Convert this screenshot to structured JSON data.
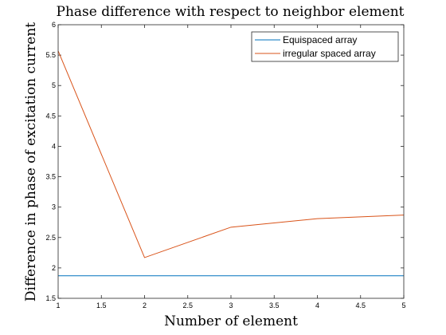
{
  "chart_data": {
    "type": "line",
    "title": "Phase difference with respect to neighbor element",
    "xlabel": "Number of element",
    "ylabel": "Difference in phase of excitation current",
    "xlim": [
      1,
      5
    ],
    "ylim": [
      1.5,
      6
    ],
    "x_ticks": [
      1,
      1.5,
      2,
      2.5,
      3,
      3.5,
      4,
      4.5,
      5
    ],
    "x_tick_labels": [
      "1",
      "1.5",
      "2",
      "2.5",
      "3",
      "3.5",
      "4",
      "4.5",
      "5"
    ],
    "y_ticks": [
      1.5,
      2,
      2.5,
      3,
      3.5,
      4,
      4.5,
      5,
      5.5,
      6
    ],
    "y_tick_labels": [
      "1.5",
      "2",
      "2.5",
      "3",
      "3.5",
      "4",
      "4.5",
      "5",
      "5.5",
      "6"
    ],
    "grid": false,
    "legend_position": "top-right",
    "series": [
      {
        "name": "Equispaced array",
        "color": "#0072bd",
        "x": [
          1,
          2,
          3,
          4,
          5
        ],
        "y": [
          1.87,
          1.87,
          1.87,
          1.87,
          1.87
        ]
      },
      {
        "name": "irregular spaced array",
        "color": "#d95319",
        "x": [
          1,
          2,
          3,
          4,
          5
        ],
        "y": [
          5.57,
          2.17,
          2.67,
          2.81,
          2.87
        ]
      }
    ]
  }
}
